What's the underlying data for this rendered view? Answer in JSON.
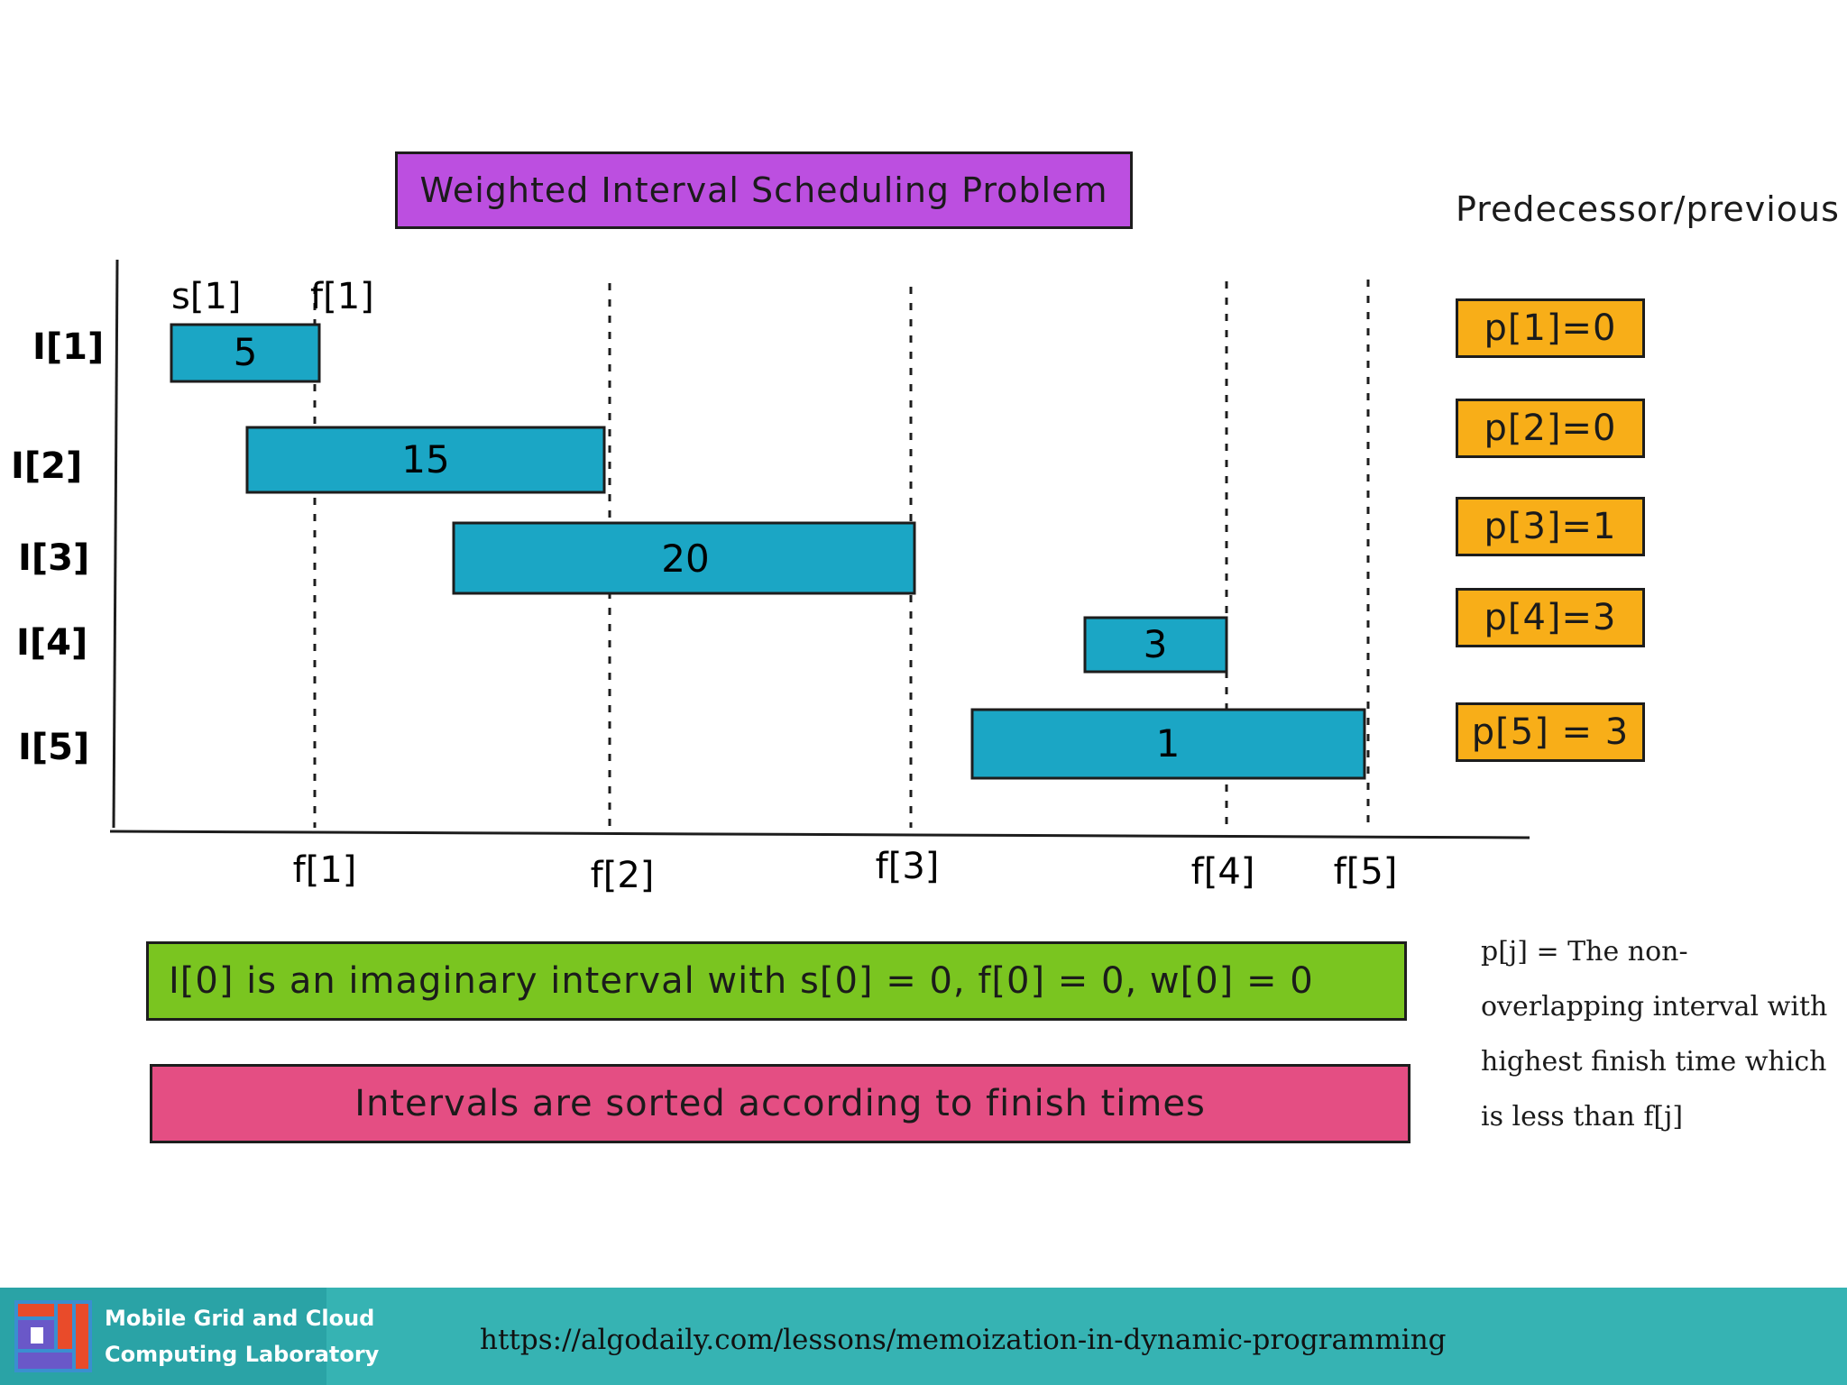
{
  "title": "Weighted Interval Scheduling Problem",
  "predecessor_heading": "Predecessor/previous",
  "start_label": "s[1]",
  "top_finish_label": "f[1]",
  "intervals": [
    {
      "label": "I[1]",
      "weight": "5"
    },
    {
      "label": "I[2]",
      "weight": "15"
    },
    {
      "label": "I[3]",
      "weight": "20"
    },
    {
      "label": "I[4]",
      "weight": "3"
    },
    {
      "label": "I[5]",
      "weight": "1"
    }
  ],
  "finish_labels": [
    "f[1]",
    "f[2]",
    "f[3]",
    "f[4]",
    "f[5]"
  ],
  "predecessors": [
    "p[1]=0",
    "p[2]=0",
    "p[3]=1",
    "p[4]=3",
    "p[5] = 3"
  ],
  "note": "p[j] = The non-overlapping interval with highest finish time which is less than f[j]",
  "imaginary_interval_text": "I[0] is an imaginary interval with s[0] = 0, f[0] = 0, w[0] = 0",
  "sorted_text": "Intervals are sorted according to finish times",
  "footer": {
    "lab_line1": "Mobile Grid and Cloud",
    "lab_line2": "Computing Laboratory",
    "url": "https://algodaily.com/lessons/memoization-in-dynamic-programming"
  },
  "colors": {
    "title_box": "#bc4fe0",
    "interval_bar": "#1ba6c5",
    "predecessor_box": "#f8ae18",
    "green_box": "#7ac520",
    "pink_box": "#e44e83",
    "footer": "#36b3b3"
  }
}
